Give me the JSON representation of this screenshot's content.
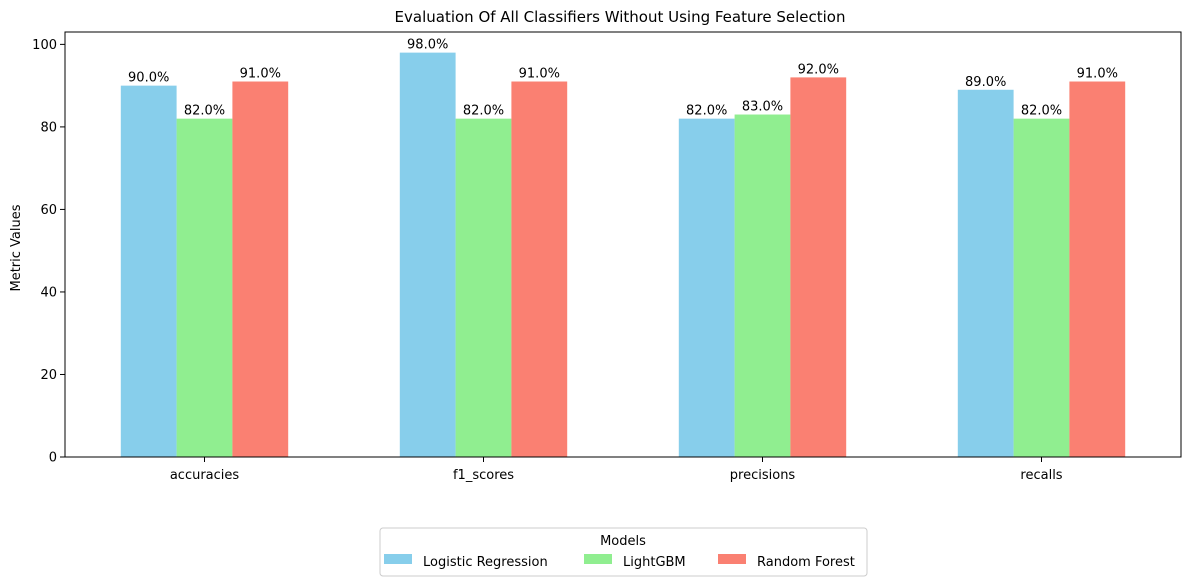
{
  "chart_data": {
    "type": "bar",
    "title": "Evaluation Of All Classifiers Without Using Feature Selection",
    "xlabel": "",
    "ylabel": "Metric Values",
    "categories": [
      "accuracies",
      "f1_scores",
      "precisions",
      "recalls"
    ],
    "series": [
      {
        "name": "Logistic Regression",
        "color": "#87CEEB",
        "values": [
          90.0,
          98.0,
          82.0,
          89.0
        ],
        "labels": [
          "90.0%",
          "98.0%",
          "82.0%",
          "89.0%"
        ]
      },
      {
        "name": "LightGBM",
        "color": "#90EE90",
        "values": [
          82.0,
          82.0,
          83.0,
          82.0
        ],
        "labels": [
          "82.0%",
          "82.0%",
          "83.0%",
          "82.0%"
        ]
      },
      {
        "name": "Random Forest",
        "color": "#FA8072",
        "values": [
          91.0,
          91.0,
          92.0,
          91.0
        ],
        "labels": [
          "91.0%",
          "91.0%",
          "92.0%",
          "91.0%"
        ]
      }
    ],
    "ylim": [
      0,
      103
    ],
    "yticks": [
      0,
      20,
      40,
      60,
      80,
      100
    ],
    "ytick_labels": [
      "0",
      "20",
      "40",
      "60",
      "80",
      "100"
    ],
    "grid": false,
    "legend": {
      "title": "Models",
      "placement": "bottom-center"
    }
  }
}
